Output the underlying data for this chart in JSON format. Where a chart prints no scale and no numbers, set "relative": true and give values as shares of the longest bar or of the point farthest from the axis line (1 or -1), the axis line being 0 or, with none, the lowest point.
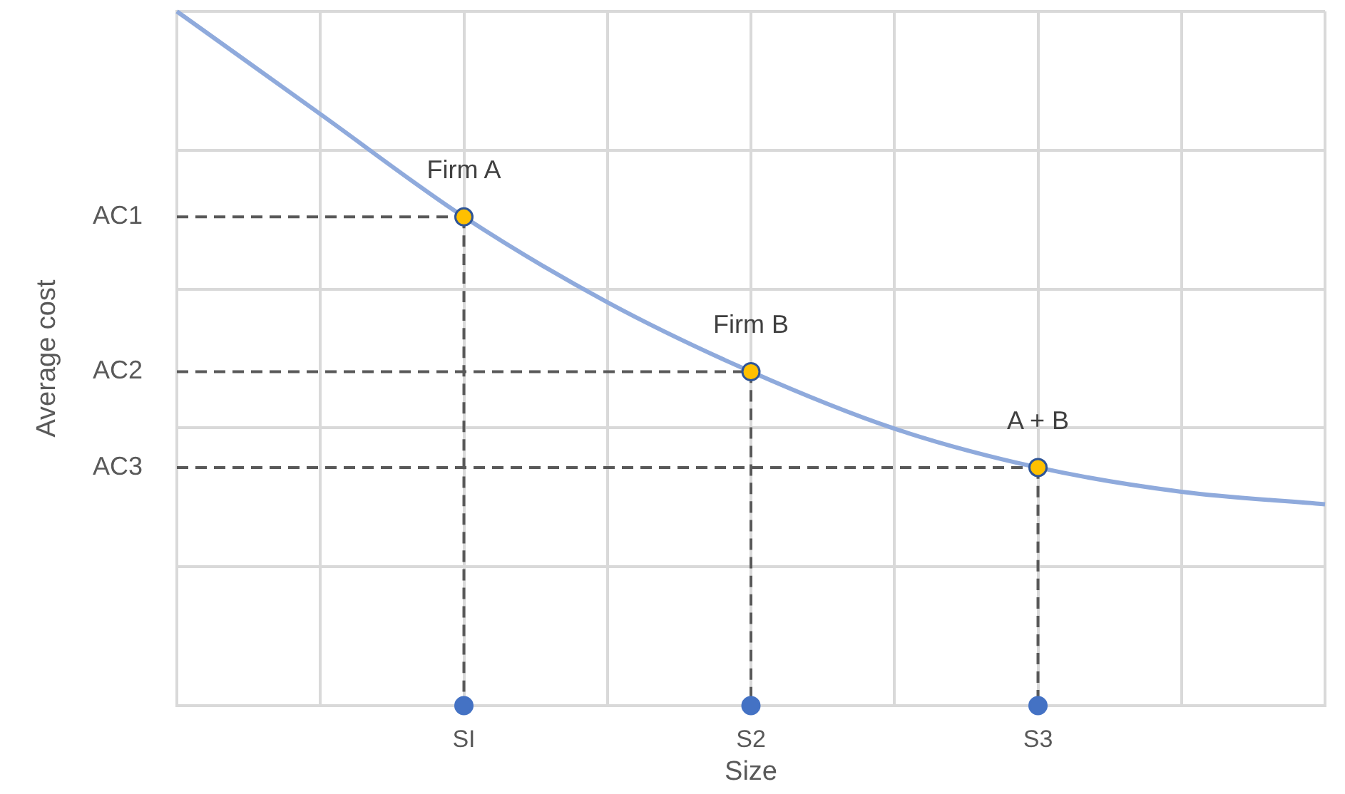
{
  "chart_data": {
    "type": "line",
    "relative": true,
    "xlabel": "Size",
    "ylabel": "Average cost",
    "categories": [
      null,
      null,
      "SI",
      null,
      "S2",
      null,
      "S3",
      null,
      null
    ],
    "grid": true,
    "legend": false,
    "marker": "none",
    "series": [
      {
        "color": "#8faadc",
        "values": [
          1,
          0.852,
          0.704,
          0.581,
          0.481,
          0.399,
          0.343,
          0.308,
          0.29
        ]
      },
      {
        "type": "line",
        "name": "AC1",
        "color": "#595959",
        "line_style": "dashed",
        "values": [
          0.704,
          0.704,
          0.704,
          null,
          null,
          null,
          null,
          null,
          null
        ]
      },
      {
        "type": "line",
        "name": "AC2",
        "color": "#595959",
        "line_style": "dashed",
        "values": [
          0.481,
          0.481,
          0.481,
          0.481,
          0.481,
          null,
          null,
          null,
          null
        ]
      },
      {
        "type": "line",
        "name": "AC3",
        "color": "#595959",
        "line_style": "dashed",
        "values": [
          0.343,
          0.343,
          0.343,
          0.343,
          0.343,
          0.343,
          0.343,
          null,
          null
        ]
      },
      {
        "type": "line",
        "color": "#595959",
        "line_style": "dashed",
        "x": [
          "SI",
          "SI"
        ],
        "values": [
          0.704,
          0
        ]
      },
      {
        "type": "line",
        "color": "#595959",
        "line_style": "dashed",
        "x": [
          "S2",
          "S2"
        ],
        "values": [
          0.481,
          0
        ]
      },
      {
        "type": "line",
        "color": "#595959",
        "line_style": "dashed",
        "x": [
          "S3",
          "S3"
        ],
        "values": [
          0.343,
          0
        ]
      },
      {
        "type": "scatter",
        "color": "#ffc000",
        "marker": "circle",
        "x": [
          "SI",
          "S2",
          "S3"
        ],
        "values": [
          0.704,
          0.481,
          0.343
        ]
      },
      {
        "type": "scatter",
        "color": "#4472c4",
        "marker": "circle",
        "x": [
          "SI",
          "S2",
          "S3"
        ],
        "values": [
          0,
          0,
          0
        ]
      }
    ],
    "annotations": [
      {
        "text": "Firm A",
        "x": "SI",
        "y": 0.704
      },
      {
        "text": "Firm B",
        "x": "S2",
        "y": 0.481
      },
      {
        "text": "A + B",
        "x": "S3",
        "y": 0.343
      }
    ]
  }
}
